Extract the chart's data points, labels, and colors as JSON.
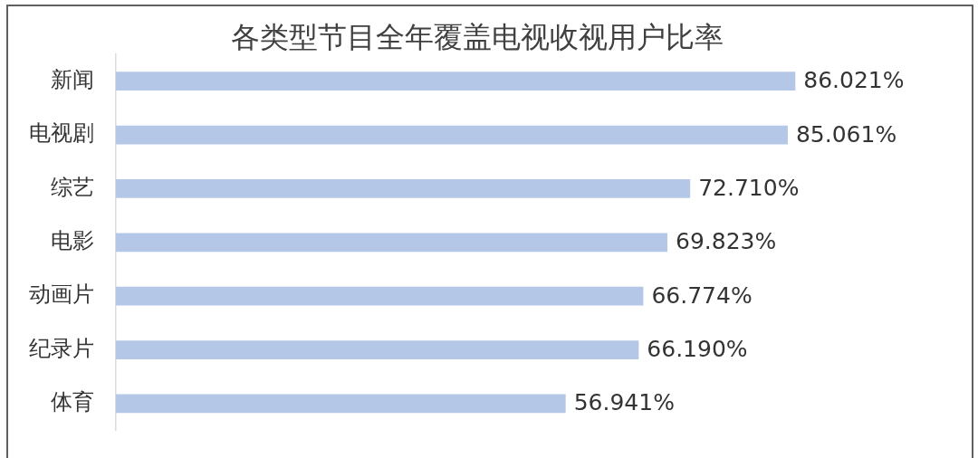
{
  "chart_data": {
    "type": "bar",
    "orientation": "horizontal",
    "title": "各类型节目全年覆盖电视收视用户比率",
    "categories": [
      "新闻",
      "电视剧",
      "综艺",
      "电影",
      "动画片",
      "纪录片",
      "体育"
    ],
    "values": [
      86.021,
      85.061,
      72.71,
      69.823,
      66.774,
      66.19,
      56.941
    ],
    "value_labels": [
      "86.021%",
      "85.061%",
      "72.710%",
      "69.823%",
      "66.774%",
      "66.190%",
      "56.941%"
    ],
    "color": "#b4c7e7",
    "tick_labels": "y"
  }
}
